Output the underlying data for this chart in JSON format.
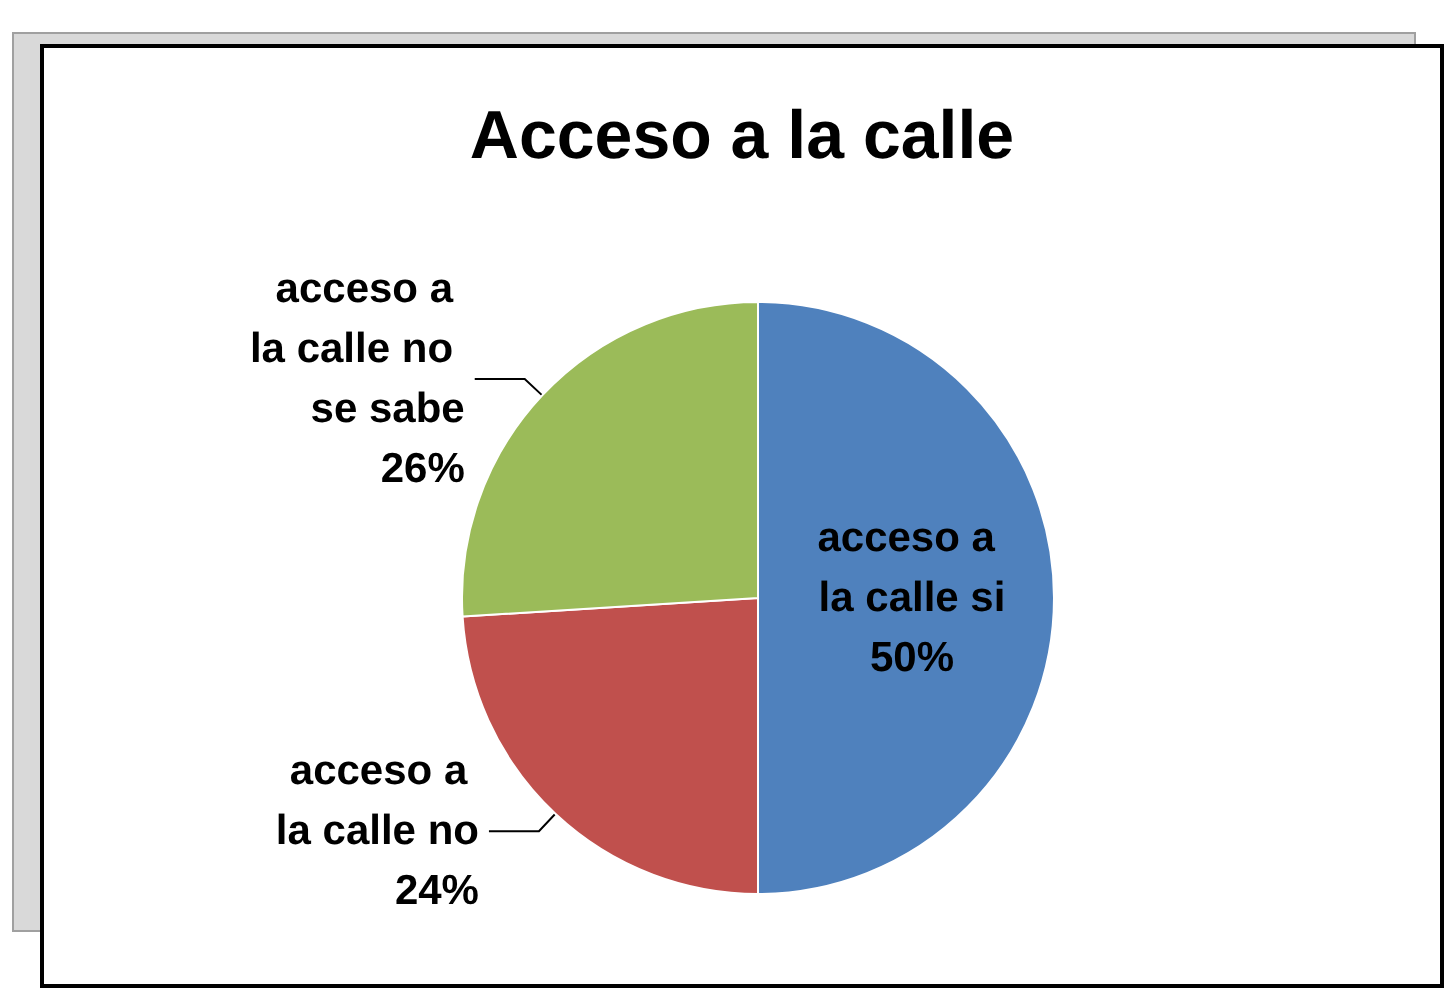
{
  "chart_data": {
    "type": "pie",
    "title": "Acceso a la calle",
    "categories": [
      "acceso a la calle si",
      "acceso a la calle no",
      "acceso a la calle no se sabe"
    ],
    "values": [
      50,
      24,
      26
    ],
    "value_labels": [
      "50%",
      "24%",
      "26%"
    ],
    "colors": [
      "#4f81bd",
      "#c0504d",
      "#9bbb59"
    ],
    "legend": false
  }
}
